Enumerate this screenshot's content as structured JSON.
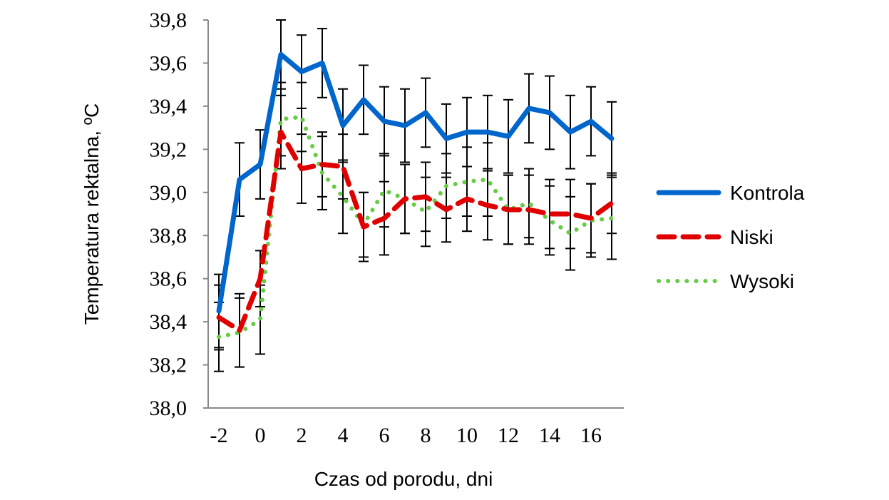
{
  "chart_data": {
    "type": "line",
    "title": "",
    "xlabel": "Czas od porodu, dni",
    "ylabel": "Temperatura rektalna, ºC",
    "xlim": [
      -2,
      17
    ],
    "ylim": [
      38.0,
      39.8
    ],
    "x_ticks": [
      "-2",
      "0",
      "2",
      "4",
      "6",
      "8",
      "10",
      "12",
      "14",
      "16"
    ],
    "x_tick_values": [
      -2,
      0,
      2,
      4,
      6,
      8,
      10,
      12,
      14,
      16
    ],
    "y_ticks": [
      "38,0",
      "38,2",
      "38,4",
      "38,6",
      "38,8",
      "39,0",
      "39,2",
      "39,4",
      "39,6",
      "39,8"
    ],
    "y_tick_values": [
      38.0,
      38.2,
      38.4,
      38.6,
      38.8,
      39.0,
      39.2,
      39.4,
      39.6,
      39.8
    ],
    "grid": false,
    "legend_position": "right",
    "x": [
      -2,
      -1,
      0,
      1,
      2,
      3,
      4,
      5,
      6,
      7,
      8,
      9,
      10,
      11,
      12,
      13,
      14,
      15,
      16,
      17
    ],
    "series": [
      {
        "name": "Kontrola",
        "color": "#0066CC",
        "style": "solid",
        "values": [
          38.45,
          39.06,
          39.13,
          39.64,
          39.56,
          39.6,
          39.31,
          39.43,
          39.33,
          39.31,
          39.37,
          39.25,
          39.28,
          39.28,
          39.26,
          39.39,
          39.37,
          39.28,
          39.33,
          39.25
        ],
        "error": [
          0.17,
          0.17,
          0.16,
          0.16,
          0.17,
          0.16,
          0.17,
          0.16,
          0.16,
          0.17,
          0.16,
          0.16,
          0.16,
          0.17,
          0.17,
          0.16,
          0.17,
          0.17,
          0.16,
          0.17
        ]
      },
      {
        "name": "Niski",
        "color": "#E00000",
        "style": "dashed",
        "values": [
          38.42,
          38.36,
          38.6,
          39.28,
          39.11,
          39.13,
          39.12,
          38.84,
          38.88,
          38.97,
          38.98,
          38.92,
          38.97,
          38.94,
          38.92,
          38.92,
          38.9,
          38.9,
          38.88,
          38.95
        ],
        "error": [
          0.15,
          0.17,
          0.13,
          0.17,
          0.16,
          0.15,
          0.15,
          0.16,
          0.17,
          0.16,
          0.16,
          0.15,
          0.15,
          0.16,
          0.16,
          0.16,
          0.16,
          0.16,
          0.16,
          0.14
        ]
      },
      {
        "name": "Wysoki",
        "color": "#66CC44",
        "style": "dotted",
        "values": [
          38.33,
          38.35,
          38.41,
          39.34,
          39.35,
          39.09,
          38.98,
          38.85,
          39.01,
          38.97,
          38.91,
          39.03,
          39.05,
          39.06,
          38.92,
          38.95,
          38.87,
          38.81,
          38.87,
          38.88
        ],
        "error": [
          0.16,
          0.16,
          0.16,
          0.17,
          0.16,
          0.17,
          0.17,
          0.15,
          0.17,
          0.16,
          0.16,
          0.15,
          0.16,
          0.17,
          0.16,
          0.16,
          0.16,
          0.17,
          0.17,
          0.19
        ]
      }
    ]
  }
}
